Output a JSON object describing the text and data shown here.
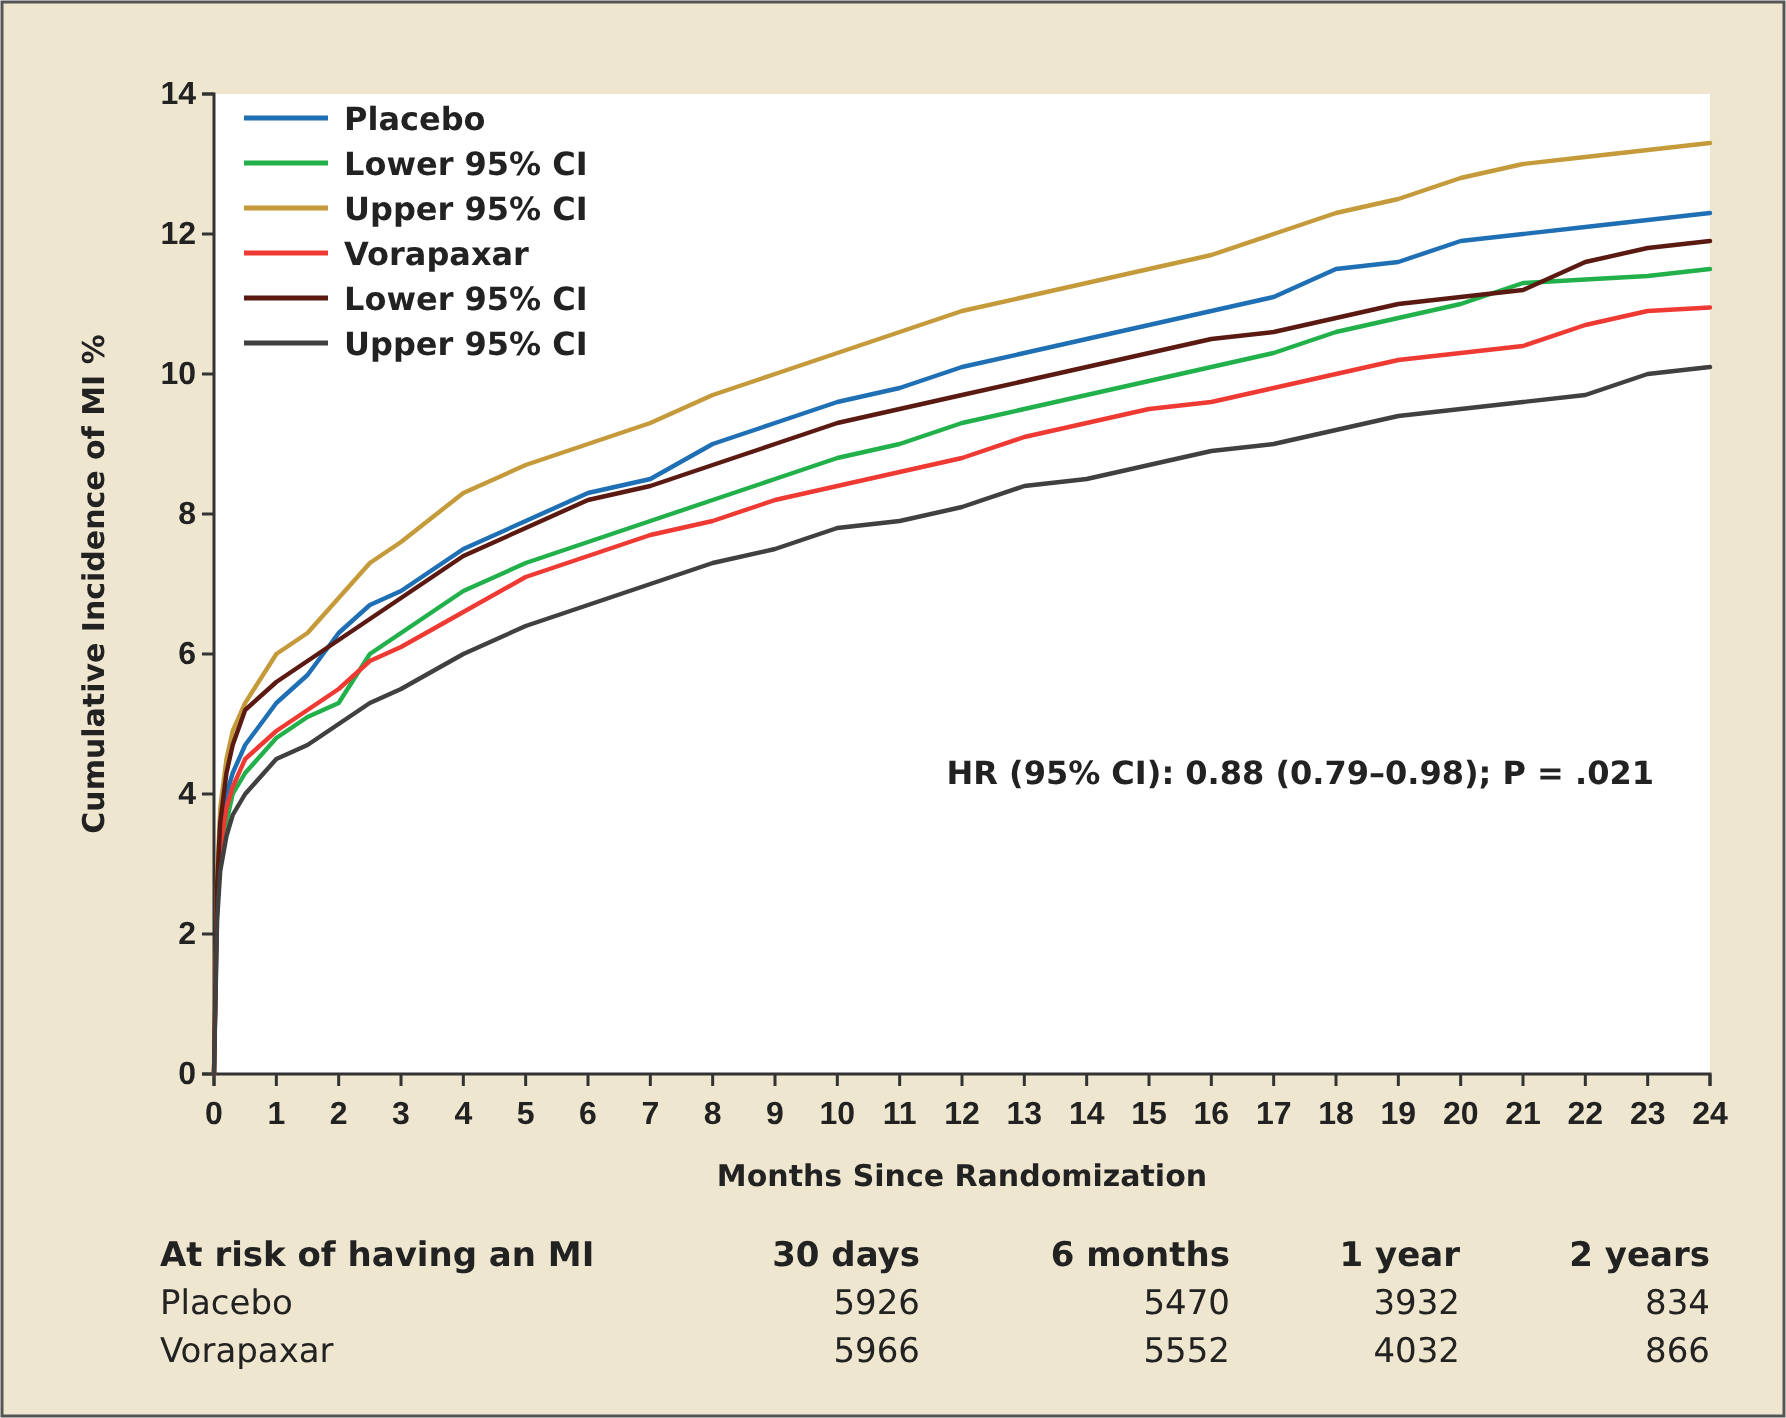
{
  "chart_data": {
    "type": "line",
    "xlabel": "Months Since Randomization",
    "ylabel": "Cumulative Incidence of MI %",
    "x": [
      0,
      0.05,
      0.1,
      0.2,
      0.3,
      0.5,
      1,
      1.5,
      2,
      2.5,
      3,
      4,
      5,
      6,
      7,
      8,
      9,
      10,
      11,
      12,
      13,
      14,
      15,
      16,
      17,
      18,
      19,
      20,
      21,
      22,
      23,
      24
    ],
    "xlim": [
      0,
      24
    ],
    "xticks": [
      0,
      1,
      2,
      3,
      4,
      5,
      6,
      7,
      8,
      9,
      10,
      11,
      12,
      13,
      14,
      15,
      16,
      17,
      18,
      19,
      20,
      21,
      22,
      23,
      24
    ],
    "ylim": [
      0,
      14
    ],
    "yticks": [
      0,
      2,
      4,
      6,
      8,
      10,
      12,
      14
    ],
    "grid": false,
    "legend": "top left",
    "marker": "none",
    "line_style": "solid",
    "series": [
      {
        "name": "Placebo",
        "color": "#1f6fb5",
        "values": [
          null,
          null,
          3.4,
          4.0,
          4.3,
          4.7,
          5.3,
          5.7,
          6.3,
          6.7,
          6.9,
          7.5,
          7.9,
          8.3,
          8.5,
          9.0,
          9.3,
          9.6,
          9.8,
          10.1,
          10.3,
          10.5,
          10.7,
          10.9,
          11.1,
          11.5,
          11.6,
          11.9,
          12.0,
          12.1,
          12.2,
          12.3
        ]
      },
      {
        "name": "Lower 95% CI",
        "color": "#22b04b",
        "values": [
          null,
          null,
          3.1,
          3.6,
          4.0,
          4.3,
          4.8,
          5.1,
          5.3,
          6.0,
          6.3,
          6.9,
          7.3,
          7.6,
          7.9,
          8.2,
          8.5,
          8.8,
          9.0,
          9.3,
          9.5,
          9.7,
          9.9,
          10.1,
          10.3,
          10.6,
          10.8,
          11.0,
          11.3,
          11.35,
          11.4,
          11.5
        ]
      },
      {
        "name": "Upper 95% CI",
        "color": "#c49a3a",
        "values": [
          0,
          2.8,
          3.8,
          4.5,
          4.9,
          5.3,
          6.0,
          6.3,
          6.8,
          7.3,
          7.6,
          8.3,
          8.7,
          9.0,
          9.3,
          9.7,
          10.0,
          10.3,
          10.6,
          10.9,
          11.1,
          11.3,
          11.5,
          11.7,
          12.0,
          12.3,
          12.5,
          12.8,
          13.0,
          13.1,
          13.2,
          13.3
        ]
      },
      {
        "name": "Vorapaxar",
        "color": "#ee3a33",
        "values": [
          0,
          2.4,
          3.2,
          3.8,
          4.1,
          4.5,
          4.9,
          5.2,
          5.5,
          5.9,
          6.1,
          6.6,
          7.1,
          7.4,
          7.7,
          7.9,
          8.2,
          8.4,
          8.6,
          8.8,
          9.1,
          9.3,
          9.5,
          9.6,
          9.8,
          10.0,
          10.2,
          10.3,
          10.4,
          10.7,
          10.9,
          10.95
        ]
      },
      {
        "name": "Lower 95% CI",
        "color": "#5a1a12",
        "values": [
          0,
          2.7,
          3.6,
          4.3,
          4.7,
          5.2,
          5.6,
          5.9,
          6.2,
          6.5,
          6.8,
          7.4,
          7.8,
          8.2,
          8.4,
          8.7,
          9.0,
          9.3,
          9.5,
          9.7,
          9.9,
          10.1,
          10.3,
          10.5,
          10.6,
          10.8,
          11.0,
          11.1,
          11.2,
          11.6,
          11.8,
          11.9
        ]
      },
      {
        "name": "Upper 95% CI",
        "color": "#404040",
        "values": [
          0,
          2.2,
          2.9,
          3.4,
          3.7,
          4.0,
          4.5,
          4.7,
          5.0,
          5.3,
          5.5,
          6.0,
          6.4,
          6.7,
          7.0,
          7.3,
          7.5,
          7.8,
          7.9,
          8.1,
          8.4,
          8.5,
          8.7,
          8.9,
          9.0,
          9.2,
          9.4,
          9.5,
          9.6,
          9.7,
          10.0,
          10.1
        ]
      }
    ],
    "annotations": [
      "HR (95% CI): 0.88 (0.79–0.98); P = .021",
      "At risk of having an MI",
      "30 days",
      "6 months",
      "1 year",
      "2 years",
      "Placebo",
      "5926",
      "5470",
      "3932",
      "834",
      "Vorapaxar",
      "5966",
      "5552",
      "4032",
      "866"
    ]
  }
}
